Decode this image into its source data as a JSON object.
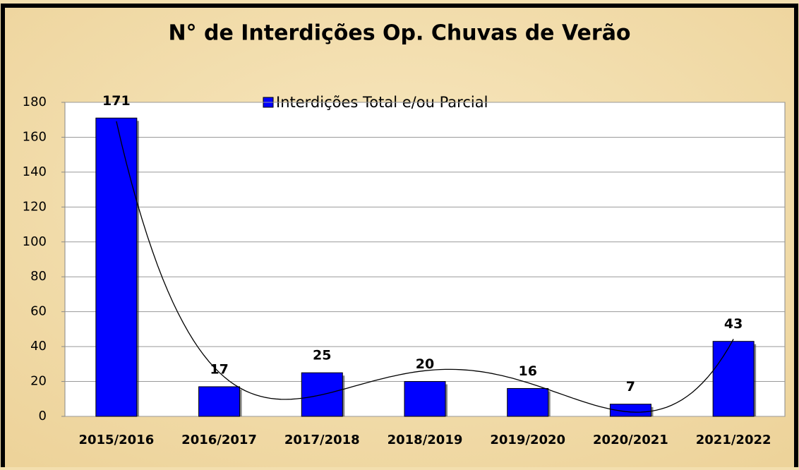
{
  "chart_data": {
    "type": "bar",
    "title": "N° de Interdições Op. Chuvas de Verão",
    "categories": [
      "2015/2016",
      "2016/2017",
      "2017/2018",
      "2018/2019",
      "2019/2020",
      "2020/2021",
      "2021/2022"
    ],
    "series": [
      {
        "name": "Interdições Total e/ou Parcial",
        "color": "#0000ff",
        "values": [
          171,
          17,
          25,
          20,
          16,
          7,
          43
        ]
      }
    ],
    "ylim": [
      0,
      180
    ],
    "yticks": [
      0,
      20,
      40,
      60,
      80,
      100,
      120,
      140,
      160,
      180
    ],
    "grid": true,
    "legend": "top",
    "trendline": "polynomial"
  }
}
